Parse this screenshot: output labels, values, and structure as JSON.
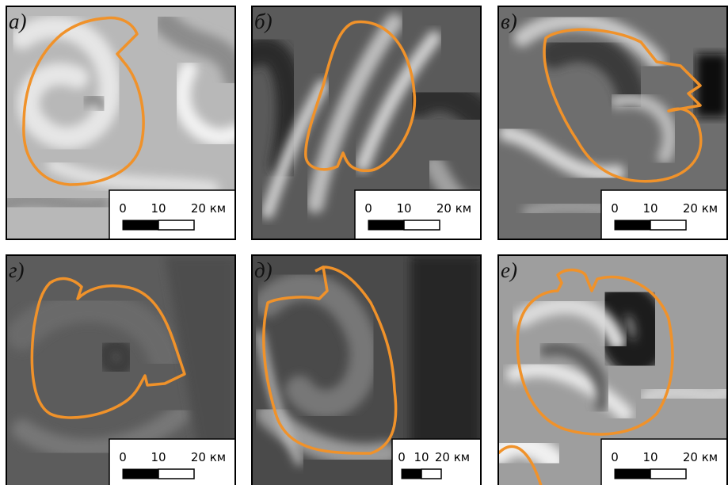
{
  "panels": [
    {
      "label": "а)",
      "scale_labels": [
        "0",
        "10",
        "20 км"
      ]
    },
    {
      "label": "б)",
      "scale_labels": [
        "0",
        "10",
        "20 км"
      ]
    },
    {
      "label": "в)",
      "scale_labels": [
        "0",
        "10",
        "20 км"
      ]
    },
    {
      "label": "г)",
      "scale_labels": [
        "0",
        "10",
        "20 км"
      ]
    },
    {
      "label": "д)",
      "scale_labels": [
        "0",
        "10",
        "20 км"
      ]
    },
    {
      "label": "е)",
      "scale_labels": [
        "0",
        "10",
        "20 км"
      ]
    }
  ]
}
